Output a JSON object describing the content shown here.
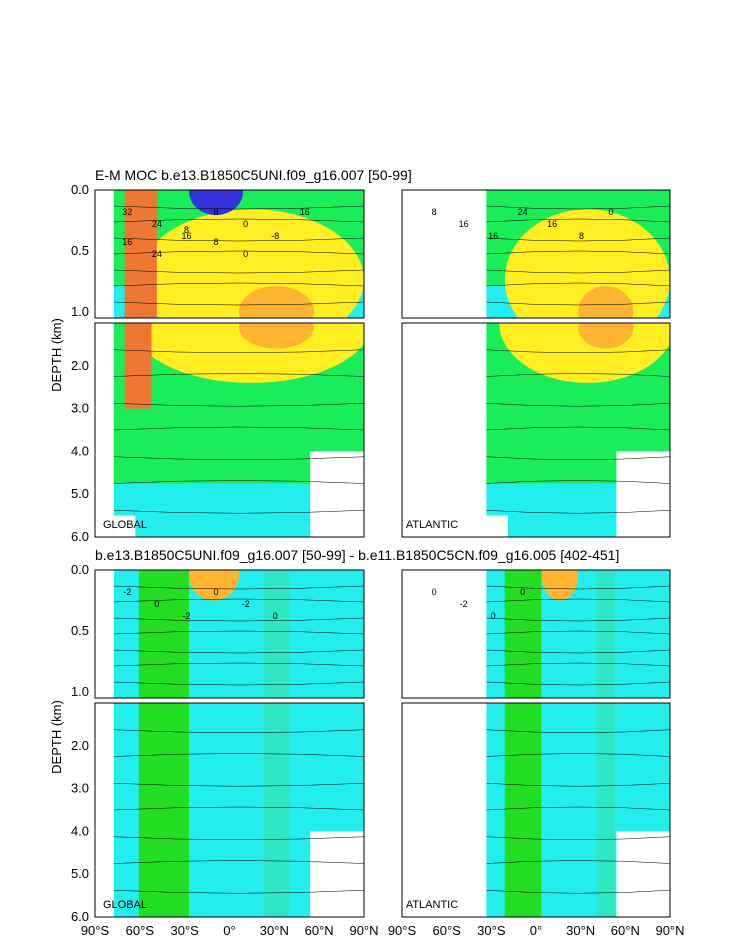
{
  "titles": {
    "top": "E-M MOC  b.e13.B1850C5UNI.f09_g16.007 [50-99]",
    "bottom": "b.e13.B1850C5UNI.f09_g16.007 [50-99] - b.e11.B1850C5CN.f09_g16.005 [402-451]"
  },
  "colors": {
    "light_green": "#22dd22",
    "green": "#19ee5a",
    "cyan": "#22eeee",
    "teal": "#2ee6c4",
    "yellow_green": "#aaee22",
    "yellow": "#ffee22",
    "orange": "#ffb432",
    "red_orange": "#ee7733",
    "blue": "#3333dd"
  },
  "chart_data": [
    {
      "type": "contour",
      "panel": "top-global",
      "region_label": "GLOBAL",
      "ylabel": "DEPTH (km)",
      "xticks": [
        "90°S",
        "60°S",
        "30°S",
        "0°",
        "30°N",
        "60°N",
        "90°N"
      ],
      "yticks_upper": [
        "0.0",
        "0.5",
        "1.0"
      ],
      "yticks_lower": [
        "2.0",
        "3.0",
        "4.0",
        "5.0",
        "6.0"
      ],
      "ylim_km": [
        0,
        6
      ],
      "contour_labels": [
        "32",
        "24",
        "16",
        "8",
        "0",
        "-8",
        "16",
        "16",
        "24",
        "8",
        "8",
        "0"
      ]
    },
    {
      "type": "contour",
      "panel": "top-atlantic",
      "region_label": "ATLANTIC",
      "xticks": [
        "90°S",
        "60°S",
        "30°S",
        "0°",
        "30°N",
        "60°N",
        "90°N"
      ],
      "ylim_km": [
        0,
        6
      ],
      "contour_labels": [
        "8",
        "16",
        "16",
        "24",
        "16",
        "8",
        "0"
      ]
    },
    {
      "type": "contour",
      "panel": "bottom-global",
      "region_label": "GLOBAL",
      "ylabel": "DEPTH (km)",
      "xticks": [
        "90°S",
        "60°S",
        "30°S",
        "0°",
        "30°N",
        "60°N",
        "90°N"
      ],
      "yticks_upper": [
        "0.0",
        "0.5",
        "1.0"
      ],
      "yticks_lower": [
        "2.0",
        "3.0",
        "4.0",
        "5.0",
        "6.0"
      ],
      "ylim_km": [
        0,
        6
      ],
      "contour_labels": [
        "-2",
        "0",
        "-2",
        "0",
        "-2",
        "0"
      ]
    },
    {
      "type": "contour",
      "panel": "bottom-atlantic",
      "region_label": "ATLANTIC",
      "xticks": [
        "90°S",
        "60°S",
        "30°S",
        "0°",
        "30°N",
        "60°N",
        "90°N"
      ],
      "ylim_km": [
        0,
        6
      ],
      "contour_labels": [
        "0",
        "-2",
        "0",
        "0"
      ]
    }
  ]
}
